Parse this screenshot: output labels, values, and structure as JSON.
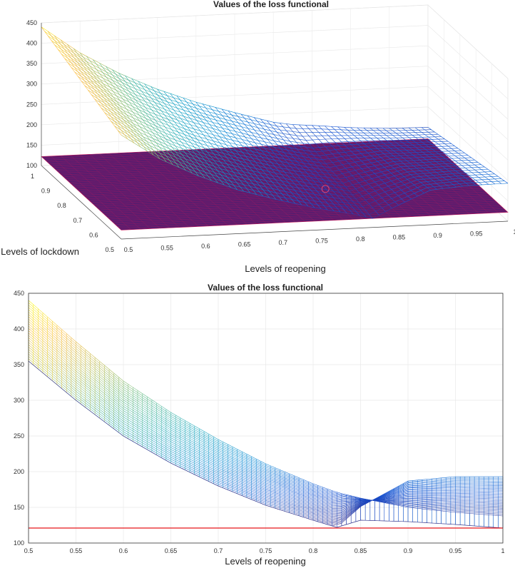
{
  "chart_data": [
    {
      "type": "surface",
      "title": "Values of the loss functional",
      "xlabel": "Levels of reopening",
      "ylabel": "Levels of lockdown",
      "xlim": [
        0.5,
        1
      ],
      "ylim": [
        0.5,
        1
      ],
      "zlim": [
        100,
        450
      ],
      "xticks": [
        "0.5",
        "0.55",
        "0.6",
        "0.65",
        "0.7",
        "0.75",
        "0.8",
        "0.85",
        "0.9",
        "0.95",
        "1"
      ],
      "yticks": [
        "0.5",
        "0.6",
        "0.7",
        "0.8",
        "0.9",
        "1"
      ],
      "zticks": [
        "100",
        "150",
        "200",
        "250",
        "300",
        "350",
        "400",
        "450"
      ],
      "grid": true,
      "colormap": "parula",
      "plane": {
        "z": 122,
        "color": "#5a1c6e",
        "mesh_color": "#c8185a"
      },
      "surface_samples": {
        "reopening": [
          0.5,
          0.55,
          0.6,
          0.65,
          0.7,
          0.75,
          0.8,
          0.825,
          0.85,
          0.9,
          0.95,
          1
        ],
        "loss_at_lockdown_1": [
          440,
          372,
          318,
          274,
          238,
          208,
          180,
          172,
          168,
          158,
          152,
          150
        ],
        "loss_at_lockdown_0_5": [
          355,
          292,
          246,
          208,
          180,
          155,
          135,
          122,
          145,
          185,
          192,
          193
        ]
      },
      "minimum": {
        "reopening": 0.825,
        "lockdown": 0.5,
        "loss": 122
      }
    },
    {
      "type": "line",
      "title": "Values of the loss functional",
      "xlabel": "Levels of reopening",
      "ylabel": "",
      "xlim": [
        0.5,
        1
      ],
      "ylim": [
        100,
        450
      ],
      "xticks": [
        "0.5",
        "0.55",
        "0.6",
        "0.65",
        "0.7",
        "0.75",
        "0.8",
        "0.85",
        "0.9",
        "0.95",
        "1"
      ],
      "yticks": [
        "100",
        "150",
        "200",
        "250",
        "300",
        "350",
        "400",
        "450"
      ],
      "grid": true,
      "colormap": "parula",
      "x": [
        0.5,
        0.55,
        0.6,
        0.65,
        0.7,
        0.75,
        0.8,
        0.825,
        0.85,
        0.9,
        0.95,
        1
      ],
      "upper_envelope": [
        440,
        382,
        327,
        283,
        245,
        211,
        183,
        171,
        163,
        150,
        143,
        138
      ],
      "lower_envelope": [
        355,
        300,
        250,
        212,
        180,
        153,
        132,
        122,
        132,
        130,
        126,
        121
      ],
      "right_envelope": [
        355,
        300,
        250,
        212,
        180,
        153,
        132,
        122,
        151,
        187,
        193,
        193
      ],
      "reference_line": {
        "y": 121,
        "color": "#e8161b"
      }
    }
  ]
}
